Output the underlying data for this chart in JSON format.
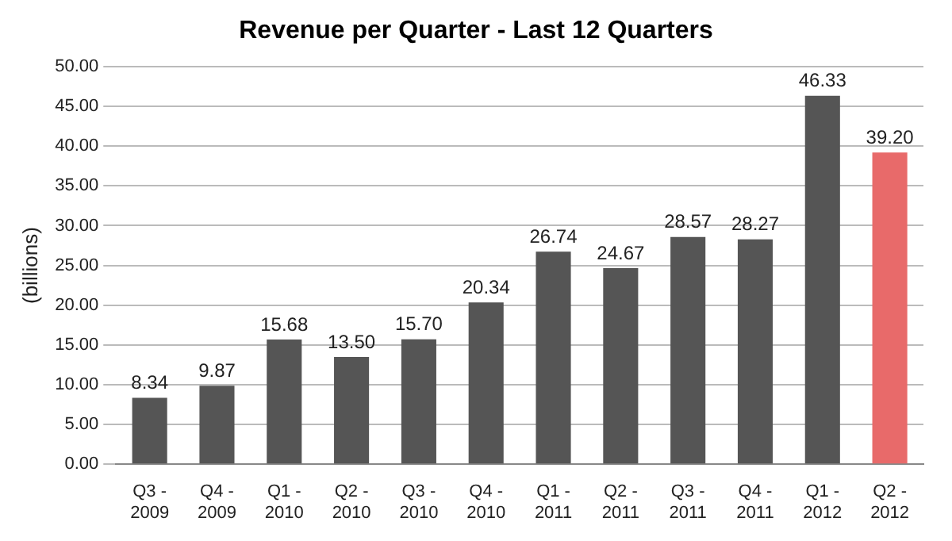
{
  "chart_data": {
    "type": "bar",
    "title": "Revenue per Quarter - Last 12 Quarters",
    "ylabel": "(billions)",
    "categories": [
      "Q3 - 2009",
      "Q4 - 2009",
      "Q1 - 2010",
      "Q2 - 2010",
      "Q3 - 2010",
      "Q4 - 2010",
      "Q1 - 2011",
      "Q2 - 2011",
      "Q3 - 2011",
      "Q4 - 2011",
      "Q1 - 2012",
      "Q2 - 2012"
    ],
    "values": [
      8.34,
      9.87,
      15.68,
      13.5,
      15.7,
      20.34,
      26.74,
      24.67,
      28.57,
      28.27,
      46.33,
      39.2
    ],
    "value_labels": [
      "8.34",
      "9.87",
      "15.68",
      "13.50",
      "15.70",
      "20.34",
      "26.74",
      "24.67",
      "28.57",
      "28.27",
      "46.33",
      "39.20"
    ],
    "colors": [
      "#555555",
      "#555555",
      "#555555",
      "#555555",
      "#555555",
      "#555555",
      "#555555",
      "#555555",
      "#555555",
      "#555555",
      "#555555",
      "#e86a6a"
    ],
    "ylim": [
      0,
      50
    ],
    "yticks": [
      {
        "value": 0,
        "label": "0.00"
      },
      {
        "value": 5,
        "label": "5.00"
      },
      {
        "value": 10,
        "label": "10.00"
      },
      {
        "value": 15,
        "label": "15.00"
      },
      {
        "value": 20,
        "label": "20.00"
      },
      {
        "value": 25,
        "label": "25.00"
      },
      {
        "value": 30,
        "label": "30.00"
      },
      {
        "value": 35,
        "label": "35.00"
      },
      {
        "value": 40,
        "label": "40.00"
      },
      {
        "value": 45,
        "label": "45.00"
      },
      {
        "value": 50,
        "label": "50.00"
      }
    ],
    "grid": "y"
  }
}
